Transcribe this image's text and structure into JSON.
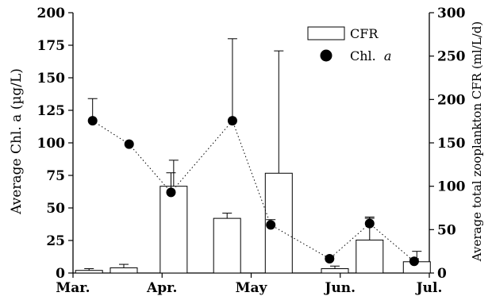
{
  "chart_data": {
    "type": "bar",
    "title": "",
    "xlabel": "",
    "ylabel_left": "Average Chl. a (µg/L)",
    "ylabel_right": "Average total zooplankton CFR (ml/L/d)",
    "x_range": [
      0,
      4
    ],
    "x_ticks": [
      {
        "label": "Mar.",
        "pos": 0
      },
      {
        "label": "Apr.",
        "pos": 1
      },
      {
        "label": "May",
        "pos": 2
      },
      {
        "label": "Jun.",
        "pos": 3
      },
      {
        "label": "Jul.",
        "pos": 4
      }
    ],
    "y_left": {
      "min": 0,
      "max": 200,
      "ticks": [
        0,
        25,
        50,
        75,
        100,
        125,
        150,
        175,
        200
      ]
    },
    "y_right": {
      "min": 0,
      "max": 300,
      "ticks": [
        0,
        50,
        100,
        150,
        200,
        250,
        300
      ]
    },
    "legend": {
      "placement": "top-right",
      "cfr_label": "CFR",
      "chl_label_prefix": "Chl.",
      "chl_label_italic": "a"
    },
    "series": [
      {
        "name": "CFR",
        "kind": "bar",
        "axis": "right",
        "points": [
          {
            "x": 0.18,
            "y": 3,
            "err": 2
          },
          {
            "x": 0.57,
            "y": 6,
            "err": 4
          },
          {
            "x": 1.13,
            "y": 100,
            "err": 30
          },
          {
            "x": 1.73,
            "y": 63,
            "err": 6
          },
          {
            "x": 2.31,
            "y": 115,
            "err": 141
          },
          {
            "x": 2.94,
            "y": 5,
            "err": 3
          },
          {
            "x": 3.33,
            "y": 38,
            "err": 25
          },
          {
            "x": 3.86,
            "y": 13,
            "err": 12
          }
        ]
      },
      {
        "name": "Chl. a",
        "kind": "line-marker",
        "axis": "left",
        "line_style": "dotted",
        "points": [
          {
            "x": 0.22,
            "y": 117,
            "err": 17
          },
          {
            "x": 0.63,
            "y": 99,
            "err": 0
          },
          {
            "x": 1.1,
            "y": 62,
            "err": 15
          },
          {
            "x": 1.79,
            "y": 117,
            "err": 63
          },
          {
            "x": 2.22,
            "y": 37,
            "err": 4
          },
          {
            "x": 2.88,
            "y": 11,
            "err": 2
          },
          {
            "x": 3.33,
            "y": 38,
            "err": 5
          },
          {
            "x": 3.83,
            "y": 9,
            "err": 2
          }
        ]
      }
    ]
  }
}
